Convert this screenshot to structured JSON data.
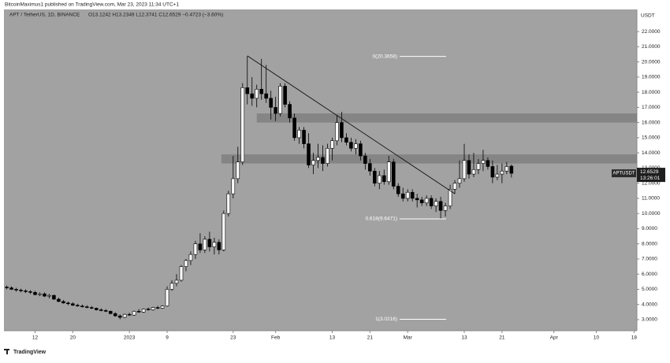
{
  "header": {
    "publisher": "BitcoinMaximus1 published on TradingView.com, Mar 23, 2023 11:34 UTC+1"
  },
  "footer": {
    "brand": "TradingView"
  },
  "chart_data": {
    "type": "candlestick",
    "title": "APT / TetherUS, 1D, BINANCE",
    "ohlc_label": "O13.1242 H13.2349 L12.3741 C12.6529 −0.4723 (−3.60%)",
    "currency": "USDT",
    "symbol": "APTUSDT",
    "countdown": "13:26:01",
    "up_color": "#ffffff",
    "down_color": "#000000",
    "background": "#a2a2a2",
    "categories": [
      null,
      null,
      null,
      null,
      null,
      null,
      null,
      null,
      null,
      null,
      null,
      null,
      null,
      null,
      null,
      null,
      null,
      null,
      null,
      null,
      null,
      null,
      null,
      null,
      null,
      null,
      null,
      null,
      null,
      null,
      null,
      null,
      null,
      null,
      null,
      null,
      null,
      null,
      null,
      null,
      null,
      null,
      null,
      null,
      null,
      null,
      null,
      null,
      null,
      null,
      null,
      null,
      null,
      null,
      null,
      null,
      null,
      null,
      null,
      null,
      null,
      null,
      null,
      null,
      null,
      null,
      null,
      null,
      null,
      null,
      null,
      null,
      null,
      null,
      null,
      null,
      null,
      null,
      null,
      null,
      null,
      null,
      null,
      null,
      null,
      null,
      null,
      null,
      null,
      null,
      null,
      null,
      null,
      null,
      null,
      null,
      null,
      null,
      null,
      null,
      null,
      null,
      null,
      null,
      null,
      null,
      null,
      null
    ],
    "open": [
      5.15,
      5.1,
      5.0,
      4.95,
      4.9,
      4.85,
      4.8,
      4.65,
      4.7,
      4.55,
      4.6,
      4.35,
      4.2,
      4.1,
      4.05,
      3.95,
      3.9,
      3.85,
      3.8,
      3.75,
      3.65,
      3.6,
      3.55,
      3.4,
      3.25,
      3.15,
      3.35,
      3.3,
      3.55,
      3.5,
      3.7,
      3.65,
      3.8,
      3.75,
      3.9,
      5.0,
      5.4,
      5.6,
      6.5,
      6.9,
      7.3,
      8.0,
      7.6,
      8.3,
      7.8,
      8.1,
      7.6,
      10.0,
      11.3,
      12.3,
      13.4,
      18.3,
      17.9,
      17.6,
      18.2,
      17.9,
      17.6,
      17.0,
      16.6,
      18.4,
      17.2,
      16.3,
      15.0,
      15.5,
      14.6,
      13.2,
      13.5,
      13.7,
      13.3,
      14.3,
      14.8,
      16.0,
      15.0,
      14.7,
      14.3,
      14.6,
      13.8,
      13.3,
      12.8,
      12.0,
      12.5,
      12.1,
      13.4,
      11.8,
      11.3,
      11.0,
      11.4,
      11.0,
      10.9,
      10.7,
      11.0,
      10.5,
      10.8,
      10.2,
      10.5,
      11.6,
      12.0,
      12.3,
      13.5,
      12.6,
      12.9,
      13.3,
      13.5,
      13.1,
      12.4,
      12.6,
      12.8,
      13.1242
    ],
    "high": [
      5.25,
      5.2,
      5.1,
      5.05,
      5.0,
      4.95,
      4.9,
      4.8,
      4.8,
      4.7,
      4.65,
      4.45,
      4.3,
      4.2,
      4.15,
      4.05,
      4.0,
      3.95,
      3.9,
      3.8,
      3.75,
      3.7,
      3.6,
      3.5,
      3.35,
      3.4,
      3.45,
      3.6,
      3.7,
      3.75,
      3.8,
      3.85,
      3.9,
      3.95,
      5.2,
      5.6,
      6.0,
      6.6,
      7.0,
      7.5,
      8.2,
      8.7,
      8.5,
      8.8,
      8.4,
      8.3,
      10.2,
      11.5,
      13.8,
      14.4,
      18.6,
      20.3658,
      19.0,
      18.5,
      20.2,
      19.8,
      18.1,
      17.7,
      18.6,
      18.6,
      17.4,
      16.6,
      15.7,
      15.7,
      15.3,
      14.0,
      14.6,
      14.5,
      14.6,
      15.0,
      16.5,
      16.7,
      15.3,
      15.0,
      14.9,
      14.8,
      14.0,
      13.6,
      13.0,
      12.8,
      12.9,
      13.8,
      13.6,
      12.0,
      11.7,
      11.6,
      11.6,
      11.3,
      11.1,
      11.2,
      11.2,
      11.0,
      11.1,
      10.7,
      11.9,
      12.2,
      13.5,
      14.6,
      13.9,
      14.0,
      13.6,
      14.2,
      13.7,
      13.5,
      13.2,
      13.3,
      13.4,
      13.2349
    ],
    "low": [
      5.0,
      4.95,
      4.85,
      4.8,
      4.75,
      4.7,
      4.6,
      4.55,
      4.5,
      4.4,
      4.3,
      4.15,
      4.05,
      3.95,
      3.9,
      3.85,
      3.8,
      3.75,
      3.7,
      3.6,
      3.55,
      3.5,
      3.35,
      3.2,
      3.0216,
      3.1,
      3.25,
      3.25,
      3.45,
      3.45,
      3.6,
      3.6,
      3.7,
      3.7,
      3.85,
      4.9,
      5.2,
      5.5,
      6.2,
      6.6,
      7.0,
      7.4,
      7.4,
      7.5,
      7.3,
      7.3,
      7.5,
      9.8,
      11.0,
      12.0,
      13.2,
      17.2,
      17.1,
      17.0,
      17.5,
      17.3,
      16.2,
      16.1,
      16.4,
      17.0,
      16.0,
      14.8,
      14.6,
      14.3,
      13.0,
      12.6,
      13.0,
      12.8,
      13.1,
      13.5,
      14.5,
      14.7,
      14.5,
      14.1,
      13.9,
      13.5,
      12.9,
      12.5,
      11.8,
      11.6,
      11.9,
      11.9,
      11.6,
      11.1,
      10.8,
      10.8,
      10.8,
      10.4,
      10.5,
      10.5,
      10.3,
      10.1,
      9.6471,
      9.8,
      10.3,
      11.3,
      11.7,
      12.1,
      12.3,
      12.4,
      12.6,
      12.8,
      12.9,
      12.0,
      12.2,
      12.0,
      12.6,
      12.3741
    ],
    "close": [
      5.1,
      5.0,
      4.95,
      4.9,
      4.85,
      4.8,
      4.65,
      4.7,
      4.55,
      4.6,
      4.35,
      4.2,
      4.1,
      4.05,
      3.95,
      3.9,
      3.85,
      3.8,
      3.75,
      3.65,
      3.6,
      3.55,
      3.4,
      3.25,
      3.15,
      3.35,
      3.3,
      3.55,
      3.5,
      3.7,
      3.65,
      3.8,
      3.75,
      3.9,
      5.0,
      5.4,
      5.6,
      6.5,
      6.9,
      7.3,
      8.0,
      7.6,
      8.3,
      7.8,
      8.1,
      7.6,
      10.0,
      11.3,
      12.3,
      13.4,
      18.3,
      17.9,
      17.6,
      18.2,
      17.9,
      17.6,
      17.0,
      16.6,
      18.4,
      17.2,
      16.3,
      15.0,
      15.5,
      14.6,
      13.2,
      13.5,
      13.7,
      13.3,
      14.3,
      14.8,
      16.0,
      15.0,
      14.7,
      14.3,
      14.6,
      13.8,
      13.3,
      12.8,
      12.0,
      12.5,
      12.1,
      13.4,
      11.8,
      11.3,
      11.0,
      11.4,
      11.0,
      10.9,
      10.7,
      11.0,
      10.5,
      10.8,
      10.2,
      10.5,
      11.6,
      12.0,
      12.3,
      13.5,
      12.6,
      12.9,
      13.3,
      13.5,
      13.1,
      12.4,
      12.6,
      12.8,
      13.1,
      12.6529
    ],
    "xlim": [
      -0.6,
      133.6
    ],
    "xticks": [
      {
        "value": 6,
        "label": "12"
      },
      {
        "value": 14,
        "label": "20"
      },
      {
        "value": 26,
        "label": "2023"
      },
      {
        "value": 34,
        "label": "9"
      },
      {
        "value": 48,
        "label": "23"
      },
      {
        "value": 57,
        "label": "Feb"
      },
      {
        "value": 69,
        "label": "13"
      },
      {
        "value": 77,
        "label": "21"
      },
      {
        "value": 85,
        "label": "Mar"
      },
      {
        "value": 97,
        "label": "13"
      },
      {
        "value": 105,
        "label": "21"
      },
      {
        "value": 116,
        "label": "Apr"
      },
      {
        "value": 125,
        "label": "10"
      },
      {
        "value": 133,
        "label": "18"
      }
    ],
    "ylim": [
      2.27,
      23.46
    ],
    "yticks": [
      {
        "value": 3,
        "label": "3.0000"
      },
      {
        "value": 4,
        "label": "4.0000"
      },
      {
        "value": 5,
        "label": "5.0000"
      },
      {
        "value": 6,
        "label": "6.0000"
      },
      {
        "value": 7,
        "label": "7.0000"
      },
      {
        "value": 8,
        "label": "8.0000"
      },
      {
        "value": 9,
        "label": "9.0000"
      },
      {
        "value": 10,
        "label": "10.0000"
      },
      {
        "value": 11,
        "label": "11.0000"
      },
      {
        "value": 12,
        "label": "12.0000"
      },
      {
        "value": 13,
        "label": "13.0000"
      },
      {
        "value": 14,
        "label": "14.0000"
      },
      {
        "value": 15,
        "label": "15.0000"
      },
      {
        "value": 16,
        "label": "16.0000"
      },
      {
        "value": 17,
        "label": "17.0000"
      },
      {
        "value": 18,
        "label": "18.0000"
      },
      {
        "value": 19,
        "label": "19.0000"
      },
      {
        "value": 20,
        "label": "20.0000"
      },
      {
        "value": 21,
        "label": "21.0000"
      },
      {
        "value": 22,
        "label": "22.0000"
      }
    ],
    "zones": [
      {
        "from": 16.0,
        "to": 16.6,
        "start": 53
      },
      {
        "from": 13.3,
        "to": 13.9,
        "start": 45.5
      }
    ],
    "trendline": {
      "x": [
        51,
        95
      ],
      "y": [
        20.4,
        11.3
      ]
    },
    "fib_levels": [
      {
        "value": 20.3658,
        "label": "0(20.3658)"
      },
      {
        "value": 9.6471,
        "label": "0.618(9.6471)"
      },
      {
        "value": 3.0216,
        "label": "1(3.0216)"
      }
    ]
  }
}
